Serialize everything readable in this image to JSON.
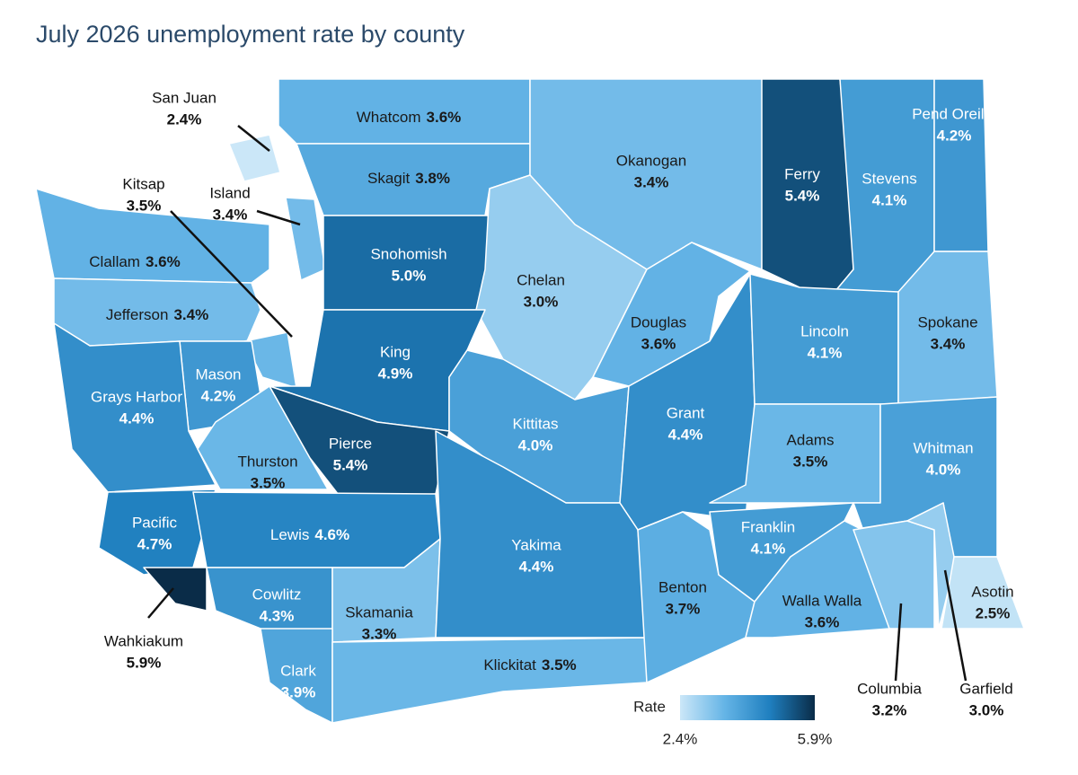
{
  "title": "July 2026 unemployment rate by county",
  "colors": [
    "#cbe7f8",
    "#64b4e6",
    "#1f7fbf",
    "#0a2c48"
  ],
  "legend": {
    "title": "Rate",
    "min": {
      "value": 2.4,
      "label": "2.4%"
    },
    "max": {
      "value": 5.9,
      "label": "5.9%"
    }
  },
  "counties": [
    {
      "name": "Whatcom",
      "value": 3.6,
      "label": "3.6%"
    },
    {
      "name": "San Juan",
      "value": 2.4,
      "label": "2.4%"
    },
    {
      "name": "Skagit",
      "value": 3.8,
      "label": "3.8%"
    },
    {
      "name": "Okanogan",
      "value": 3.4,
      "label": "3.4%"
    },
    {
      "name": "Ferry",
      "value": 5.4,
      "label": "5.4%"
    },
    {
      "name": "Stevens",
      "value": 4.1,
      "label": "4.1%"
    },
    {
      "name": "Pend Oreille",
      "value": 4.2,
      "label": "4.2%"
    },
    {
      "name": "Clallam",
      "value": 3.6,
      "label": "3.6%"
    },
    {
      "name": "Jefferson",
      "value": 3.4,
      "label": "3.4%"
    },
    {
      "name": "Island",
      "value": 3.4,
      "label": "3.4%"
    },
    {
      "name": "Kitsap",
      "value": 3.5,
      "label": "3.5%"
    },
    {
      "name": "Snohomish",
      "value": 5.0,
      "label": "5.0%"
    },
    {
      "name": "Chelan",
      "value": 3.0,
      "label": "3.0%"
    },
    {
      "name": "Douglas",
      "value": 3.6,
      "label": "3.6%"
    },
    {
      "name": "King",
      "value": 4.9,
      "label": "4.9%"
    },
    {
      "name": "Kittitas",
      "value": 4.0,
      "label": "4.0%"
    },
    {
      "name": "Grant",
      "value": 4.4,
      "label": "4.4%"
    },
    {
      "name": "Lincoln",
      "value": 4.1,
      "label": "4.1%"
    },
    {
      "name": "Spokane",
      "value": 3.4,
      "label": "3.4%"
    },
    {
      "name": "Adams",
      "value": 3.5,
      "label": "3.5%"
    },
    {
      "name": "Whitman",
      "value": 4.0,
      "label": "4.0%"
    },
    {
      "name": "Mason",
      "value": 4.2,
      "label": "4.2%"
    },
    {
      "name": "Grays Harbor",
      "value": 4.4,
      "label": "4.4%"
    },
    {
      "name": "Thurston",
      "value": 3.5,
      "label": "3.5%"
    },
    {
      "name": "Pierce",
      "value": 5.4,
      "label": "5.4%"
    },
    {
      "name": "Pacific",
      "value": 4.7,
      "label": "4.7%"
    },
    {
      "name": "Lewis",
      "value": 4.6,
      "label": "4.6%"
    },
    {
      "name": "Wahkiakum",
      "value": 5.9,
      "label": "5.9%"
    },
    {
      "name": "Cowlitz",
      "value": 4.3,
      "label": "4.3%"
    },
    {
      "name": "Skamania",
      "value": 3.3,
      "label": "3.3%"
    },
    {
      "name": "Clark",
      "value": 3.9,
      "label": "3.9%"
    },
    {
      "name": "Klickitat",
      "value": 3.5,
      "label": "3.5%"
    },
    {
      "name": "Yakima",
      "value": 4.4,
      "label": "4.4%"
    },
    {
      "name": "Benton",
      "value": 3.7,
      "label": "3.7%"
    },
    {
      "name": "Franklin",
      "value": 4.1,
      "label": "4.1%"
    },
    {
      "name": "Walla Walla",
      "value": 3.6,
      "label": "3.6%"
    },
    {
      "name": "Columbia",
      "value": 3.2,
      "label": "3.2%"
    },
    {
      "name": "Garfield",
      "value": 3.0,
      "label": "3.0%"
    },
    {
      "name": "Asotin",
      "value": 2.5,
      "label": "2.5%"
    }
  ]
}
